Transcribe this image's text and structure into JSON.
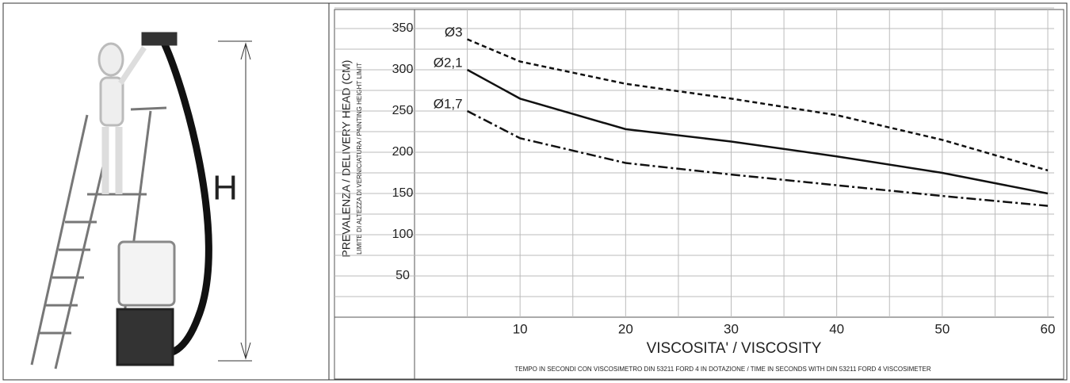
{
  "illustration": {
    "label": "H"
  },
  "chart_data": {
    "type": "line",
    "y_label": "PREVALENZA / DELIVERY HEAD (CM)",
    "y_sublabel": "LIMITE DI ALTEZZA DI VERNICIATURA / PAINTING HEIGHT LIMIT",
    "x_label": "VISCOSITA' / VISCOSITY",
    "x_sublabel": "TEMPO IN SECONDI CON VISCOSIMETRO DIN 53211 FORD 4 IN DOTAZIONE / TIME IN SECONDS WITH DIN 53211 FORD 4 VISCOSIMETER",
    "x": [
      5,
      10,
      20,
      30,
      40,
      50,
      60
    ],
    "series": [
      {
        "name": "Ø3",
        "color": "#111111",
        "dash": "dashed",
        "values": [
          337,
          310,
          283,
          265,
          245,
          215,
          178
        ]
      },
      {
        "name": "Ø2,1",
        "color": "#111111",
        "dash": "solid",
        "values": [
          300,
          265,
          228,
          213,
          195,
          175,
          150
        ]
      },
      {
        "name": "Ø1,7",
        "color": "#111111",
        "dash": "dash-dot",
        "values": [
          250,
          217,
          187,
          173,
          160,
          147,
          135
        ]
      }
    ],
    "xlim": [
      0,
      60
    ],
    "xticks": [
      10,
      20,
      30,
      40,
      50,
      60
    ],
    "ylim": [
      0,
      360
    ],
    "yticks": [
      50,
      100,
      150,
      200,
      250,
      300,
      350
    ],
    "grid": true
  }
}
